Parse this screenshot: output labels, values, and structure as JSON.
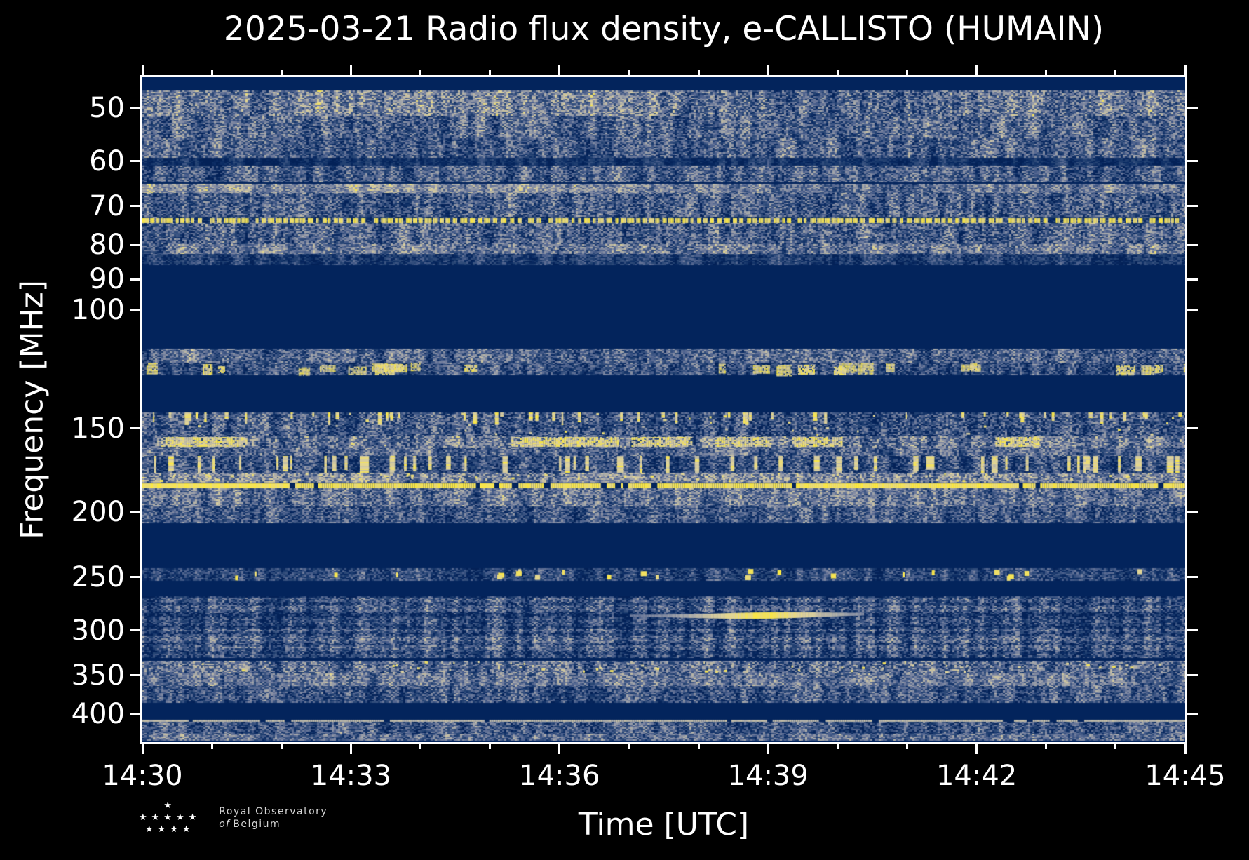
{
  "title": "2025-03-21 Radio flux density, e-CALLISTO (HUMAIN)",
  "axes": {
    "xlabel": "Time [UTC]",
    "ylabel": "Frequency [MHz]",
    "x_ticks": [
      "14:30",
      "14:33",
      "14:36",
      "14:39",
      "14:42",
      "14:45"
    ],
    "x_minutes_total": 15,
    "x_minor_every_min": 1,
    "x_major_every_min": 3,
    "y_ticks": [
      50,
      60,
      70,
      80,
      90,
      100,
      150,
      200,
      250,
      300,
      350,
      400
    ],
    "y_scale": "log",
    "f_min": 45,
    "f_max": 440
  },
  "logo": {
    "star_glyph": "★",
    "star_rows": [
      1,
      5,
      4
    ],
    "line1": "Royal Observatory",
    "line2_italic": "of",
    "line2_rest": "Belgium"
  },
  "colors": {
    "figure_bg": "#000000",
    "plot_bg": "#03245c",
    "spine": "#ffffff",
    "text": "#ffffff",
    "logo_text": "#d4d4d4",
    "rfi_yellow": "#fbe842",
    "cmap_stops": [
      [
        0.0,
        "#032157"
      ],
      [
        0.12,
        "#0b2c64"
      ],
      [
        0.25,
        "#274574"
      ],
      [
        0.4,
        "#4a5f8c"
      ],
      [
        0.55,
        "#7b85a0"
      ],
      [
        0.68,
        "#a3a6ab"
      ],
      [
        0.78,
        "#c3bda5"
      ],
      [
        0.88,
        "#e0d49b"
      ],
      [
        1.0,
        "#fbe842"
      ]
    ]
  },
  "chart_data": {
    "type": "heatmap",
    "subtype": "radio-spectrogram",
    "title": "2025-03-21 Radio flux density, e-CALLISTO (HUMAIN)",
    "xlabel": "Time [UTC]",
    "ylabel": "Frequency [MHz]",
    "time_range_utc": [
      "14:30",
      "14:45"
    ],
    "freq_range_mhz": [
      45,
      440
    ],
    "freq_axis": "log, increasing downward",
    "quiet_bands_mhz": [
      [
        85.5,
        114.2
      ],
      [
        125.1,
        142.1
      ],
      [
        207.3,
        242.4
      ],
      [
        253.2,
        266.9
      ],
      [
        329.0,
        333.0
      ],
      [
        384.7,
        407.8
      ]
    ],
    "features": [
      {
        "kind": "rfi_dashed_carrier",
        "freq_mhz": 73.4,
        "time_utc": [
          "14:30",
          "14:45"
        ],
        "appearance": "bright yellow dashed line"
      },
      {
        "kind": "rfi_continuous_carrier",
        "freq_mhz": 182.7,
        "time_utc": [
          "14:30",
          "14:45"
        ],
        "appearance": "bright yellow line"
      },
      {
        "kind": "rfi_continuous_carrier",
        "freq_mhz": 409.0,
        "time_utc": [
          "14:30",
          "14:45"
        ],
        "appearance": "pale tan line"
      },
      {
        "kind": "narrowband_emission",
        "freq_mhz": 284.5,
        "time_utc": [
          "14:37",
          "14:40"
        ],
        "appearance": "bright yellow streak, brightest 14:38-14:39.5"
      }
    ],
    "bands": [
      {
        "f": [
          47.1,
          51.4
        ],
        "base": 0.52,
        "var": 0.3,
        "wave": true
      },
      {
        "f": [
          51.4,
          55.5
        ],
        "base": 0.4,
        "var": 0.28
      },
      {
        "f": [
          55.5,
          59.4
        ],
        "base": 0.36,
        "var": 0.26
      },
      {
        "f": [
          59.4,
          60.9
        ],
        "base": 0.13,
        "var": 0.12
      },
      {
        "f": [
          60.9,
          64.6
        ],
        "base": 0.36,
        "var": 0.26
      },
      {
        "f": [
          64.8,
          66.9
        ],
        "base": 0.56,
        "var": 0.22,
        "wave": true
      },
      {
        "f": [
          67.0,
          72.4
        ],
        "base": 0.36,
        "var": 0.28
      },
      {
        "f": [
          72.6,
          74.2
        ],
        "base": 0.25,
        "var": 0.2,
        "dashes": true
      },
      {
        "f": [
          74.3,
          79.8
        ],
        "base": 0.37,
        "var": 0.28
      },
      {
        "f": [
          79.8,
          82.5
        ],
        "base": 0.48,
        "var": 0.26
      },
      {
        "f": [
          82.5,
          85.5
        ],
        "base": 0.2,
        "var": 0.18
      },
      {
        "f": [
          114.2,
          119.8
        ],
        "base": 0.4,
        "var": 0.26
      },
      {
        "f": [
          119.8,
          125.1
        ],
        "base": 0.3,
        "var": 0.24,
        "blobs": 26
      },
      {
        "f": [
          142.1,
          154.2
        ],
        "base": 0.34,
        "var": 0.28,
        "topstreaks": 55,
        "ydots": 40
      },
      {
        "f": [
          154.2,
          160.2
        ],
        "base": 0.46,
        "var": 0.28,
        "patches": [
          [
            0.018,
            0.1
          ],
          [
            0.354,
            0.455
          ],
          [
            0.469,
            0.526
          ],
          [
            0.549,
            0.603
          ],
          [
            0.623,
            0.67
          ],
          [
            0.818,
            0.859
          ]
        ]
      },
      {
        "f": [
          160.2,
          164.9
        ],
        "base": 0.4,
        "var": 0.24
      },
      {
        "f": [
          164.9,
          174.8
        ],
        "base": 0.3,
        "var": 0.26,
        "vbars": 55
      },
      {
        "f": [
          174.8,
          180.7
        ],
        "base": 0.54,
        "var": 0.26,
        "ydots": 160
      },
      {
        "f": [
          181.3,
          184.1
        ],
        "line": 0.96
      },
      {
        "f": [
          184.4,
          196.0
        ],
        "base": 0.47,
        "var": 0.26
      },
      {
        "f": [
          196.0,
          207.3
        ],
        "base": 0.34,
        "var": 0.26
      },
      {
        "f": [
          242.4,
          253.2
        ],
        "base": 0.26,
        "var": 0.22,
        "dots": 24
      },
      {
        "f": [
          266.9,
          329.0
        ],
        "base": 0.28,
        "var": 0.26,
        "rows": true,
        "arc": {
          "x": [
            0.462,
            0.691
          ],
          "fc": 284.5
        }
      },
      {
        "f": [
          333.0,
          347.7
        ],
        "base": 0.42,
        "var": 0.28,
        "ydots": 80
      },
      {
        "f": [
          347.7,
          363.1
        ],
        "base": 0.47,
        "var": 0.24
      },
      {
        "f": [
          363.1,
          384.7
        ],
        "base": 0.32,
        "var": 0.26
      },
      {
        "f": [
          407.8,
          410.3
        ],
        "line": 0.74
      },
      {
        "f": [
          410.5,
          427.7
        ],
        "base": 0.34,
        "var": 0.26
      },
      {
        "f": [
          427.7,
          438.1
        ],
        "base": 0.45,
        "var": 0.24
      }
    ]
  }
}
